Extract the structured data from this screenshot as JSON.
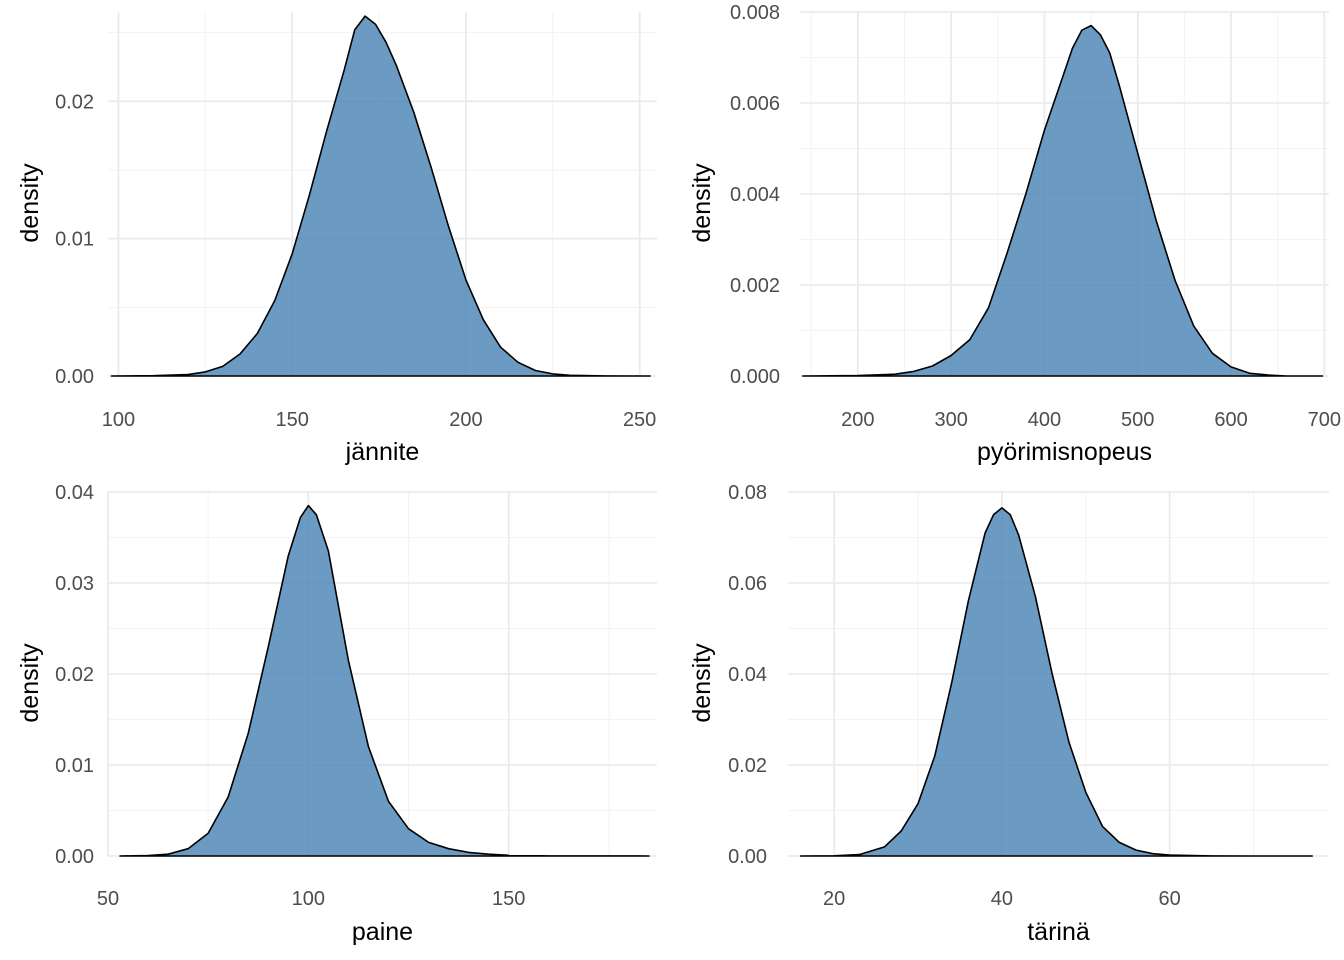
{
  "colors": {
    "fill": "#4682b4",
    "fill_opacity": 0.8,
    "outline": "#000000",
    "grid": "#ebebeb",
    "tick_text": "#4d4d4d",
    "axis_title": "#000000",
    "background": "#ffffff"
  },
  "chart_data": [
    {
      "type": "area",
      "xlabel": "jännite",
      "ylabel": "density",
      "xlim": [
        97,
        255
      ],
      "ylim": [
        0,
        0.0265
      ],
      "x_ticks": [
        100,
        150,
        200,
        250
      ],
      "x_tick_labels": [
        "100",
        "150",
        "200",
        "250"
      ],
      "y_ticks": [
        0,
        0.01,
        0.02
      ],
      "y_tick_labels": [
        "0.00",
        "0.01",
        "0.02"
      ],
      "grid": true,
      "series": [
        {
          "x": [
            98,
            110,
            120,
            125,
            130,
            135,
            140,
            145,
            150,
            155,
            160,
            165,
            168,
            171,
            174,
            177,
            180,
            185,
            190,
            195,
            200,
            205,
            210,
            215,
            220,
            225,
            230,
            240,
            250,
            253
          ],
          "y": [
            0,
            2e-05,
            0.0001,
            0.0003,
            0.0007,
            0.0016,
            0.0031,
            0.0055,
            0.0089,
            0.0132,
            0.0179,
            0.0223,
            0.0252,
            0.0262,
            0.0256,
            0.0243,
            0.0226,
            0.0192,
            0.0152,
            0.0109,
            0.007,
            0.0041,
            0.0021,
            0.001,
            0.0004,
            0.00015,
            5e-05,
            1e-05,
            0,
            0
          ]
        }
      ]
    },
    {
      "type": "area",
      "xlabel": "pyörimisnopeus",
      "ylabel": "density",
      "xlim": [
        138,
        705
      ],
      "ylim": [
        0,
        0.008
      ],
      "x_ticks": [
        200,
        300,
        400,
        500,
        600,
        700
      ],
      "x_tick_labels": [
        "200",
        "300",
        "400",
        "500",
        "600",
        "700"
      ],
      "y_ticks": [
        0,
        0.002,
        0.004,
        0.006,
        0.008
      ],
      "y_tick_labels": [
        "0.000",
        "0.002",
        "0.004",
        "0.006",
        "0.008"
      ],
      "grid": true,
      "series": [
        {
          "x": [
            141,
            200,
            240,
            260,
            280,
            300,
            320,
            340,
            360,
            380,
            400,
            420,
            430,
            440,
            450,
            460,
            470,
            480,
            500,
            520,
            540,
            560,
            580,
            600,
            620,
            640,
            660,
            698
          ],
          "y": [
            0,
            1e-05,
            4e-05,
            0.0001,
            0.00022,
            0.00045,
            0.0008,
            0.0015,
            0.0027,
            0.004,
            0.0054,
            0.0066,
            0.0072,
            0.0076,
            0.0077,
            0.0075,
            0.0071,
            0.0064,
            0.0049,
            0.0034,
            0.0021,
            0.0011,
            0.0005,
            0.0002,
            6e-05,
            2e-05,
            0,
            0
          ]
        }
      ]
    },
    {
      "type": "area",
      "xlabel": "paine",
      "ylabel": "density",
      "xlim": [
        50,
        187
      ],
      "ylim": [
        0,
        0.04
      ],
      "x_ticks": [
        50,
        100,
        150
      ],
      "x_tick_labels": [
        "50",
        "100",
        "150"
      ],
      "y_ticks": [
        0,
        0.01,
        0.02,
        0.03,
        0.04
      ],
      "y_tick_labels": [
        "0.00",
        "0.01",
        "0.02",
        "0.03",
        "0.04"
      ],
      "grid": true,
      "series": [
        {
          "x": [
            53,
            60,
            65,
            70,
            75,
            80,
            85,
            90,
            95,
            98,
            100,
            102,
            105,
            110,
            115,
            120,
            125,
            130,
            135,
            140,
            145,
            150,
            160,
            185
          ],
          "y": [
            0,
            5e-05,
            0.0002,
            0.0008,
            0.0025,
            0.0065,
            0.0135,
            0.023,
            0.033,
            0.0372,
            0.0385,
            0.0375,
            0.0335,
            0.0215,
            0.012,
            0.006,
            0.003,
            0.0015,
            0.0008,
            0.0004,
            0.0002,
            8e-05,
            1e-05,
            0
          ]
        }
      ]
    },
    {
      "type": "area",
      "xlabel": "tärinä",
      "ylabel": "density",
      "xlim": [
        14.5,
        79
      ],
      "ylim": [
        0,
        0.08
      ],
      "x_ticks": [
        20,
        40,
        60
      ],
      "x_tick_labels": [
        "20",
        "40",
        "60"
      ],
      "y_ticks": [
        0,
        0.02,
        0.04,
        0.06,
        0.08
      ],
      "y_tick_labels": [
        "0.00",
        "0.02",
        "0.04",
        "0.06",
        "0.08"
      ],
      "grid": true,
      "series": [
        {
          "x": [
            16,
            20,
            23,
            26,
            28,
            30,
            32,
            34,
            36,
            38,
            39,
            40,
            41,
            42,
            44,
            46,
            48,
            50,
            52,
            54,
            56,
            58,
            60,
            65,
            70,
            77
          ],
          "y": [
            0,
            5e-05,
            0.0003,
            0.002,
            0.0055,
            0.0115,
            0.022,
            0.038,
            0.056,
            0.071,
            0.075,
            0.0765,
            0.075,
            0.0705,
            0.057,
            0.04,
            0.025,
            0.014,
            0.0065,
            0.003,
            0.0013,
            0.0005,
            0.0002,
            3e-05,
            0,
            0
          ]
        }
      ]
    }
  ]
}
